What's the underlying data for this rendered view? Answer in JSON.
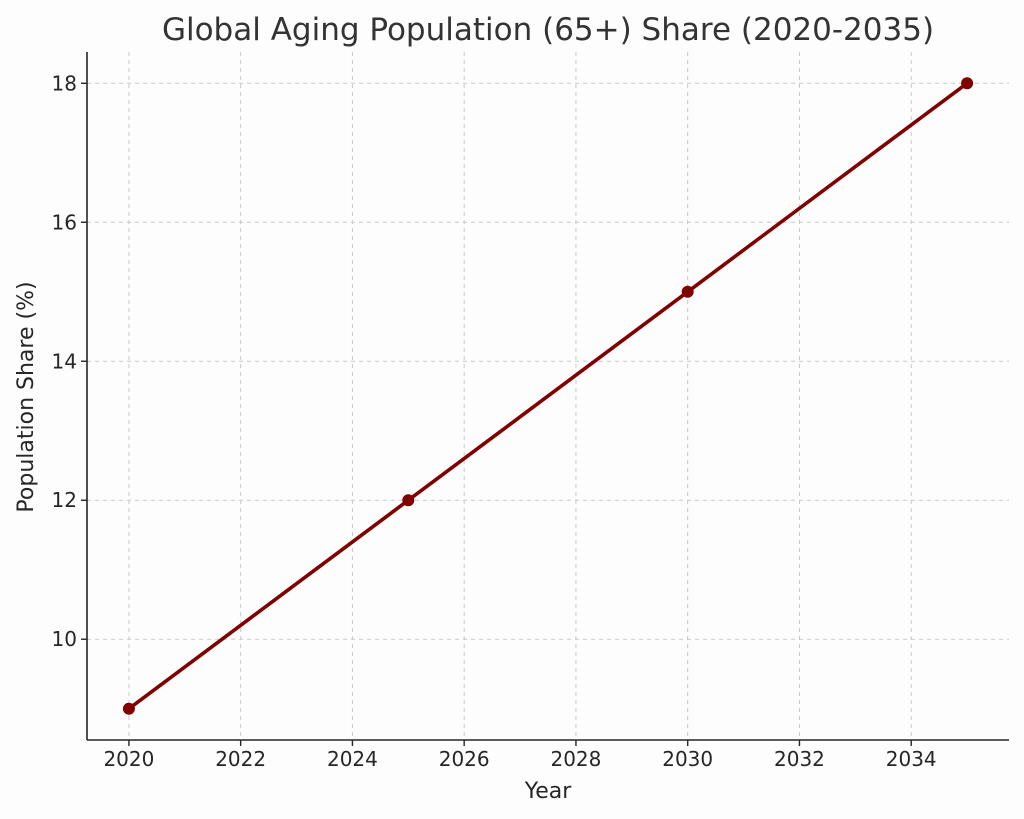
{
  "chart_data": {
    "type": "line",
    "title": "Global Aging Population (65+) Share (2020-2035)",
    "xlabel": "Year",
    "ylabel": "Population Share (%)",
    "x": [
      2020,
      2025,
      2030,
      2035
    ],
    "series": [
      {
        "values": [
          9,
          12,
          15,
          18
        ],
        "color": "#800000",
        "marker": "circle"
      }
    ],
    "xlim": [
      2019.25,
      2035.75
    ],
    "ylim": [
      8.55,
      18.45
    ],
    "xticks": [
      2020,
      2022,
      2024,
      2026,
      2028,
      2030,
      2032,
      2034
    ],
    "yticks": [
      10,
      12,
      14,
      16,
      18
    ],
    "grid": true,
    "legend": "none",
    "colors": {
      "background": "#fdfdfd",
      "text": "#262626",
      "title": "#333333",
      "grid": "#c8c8c8"
    }
  }
}
